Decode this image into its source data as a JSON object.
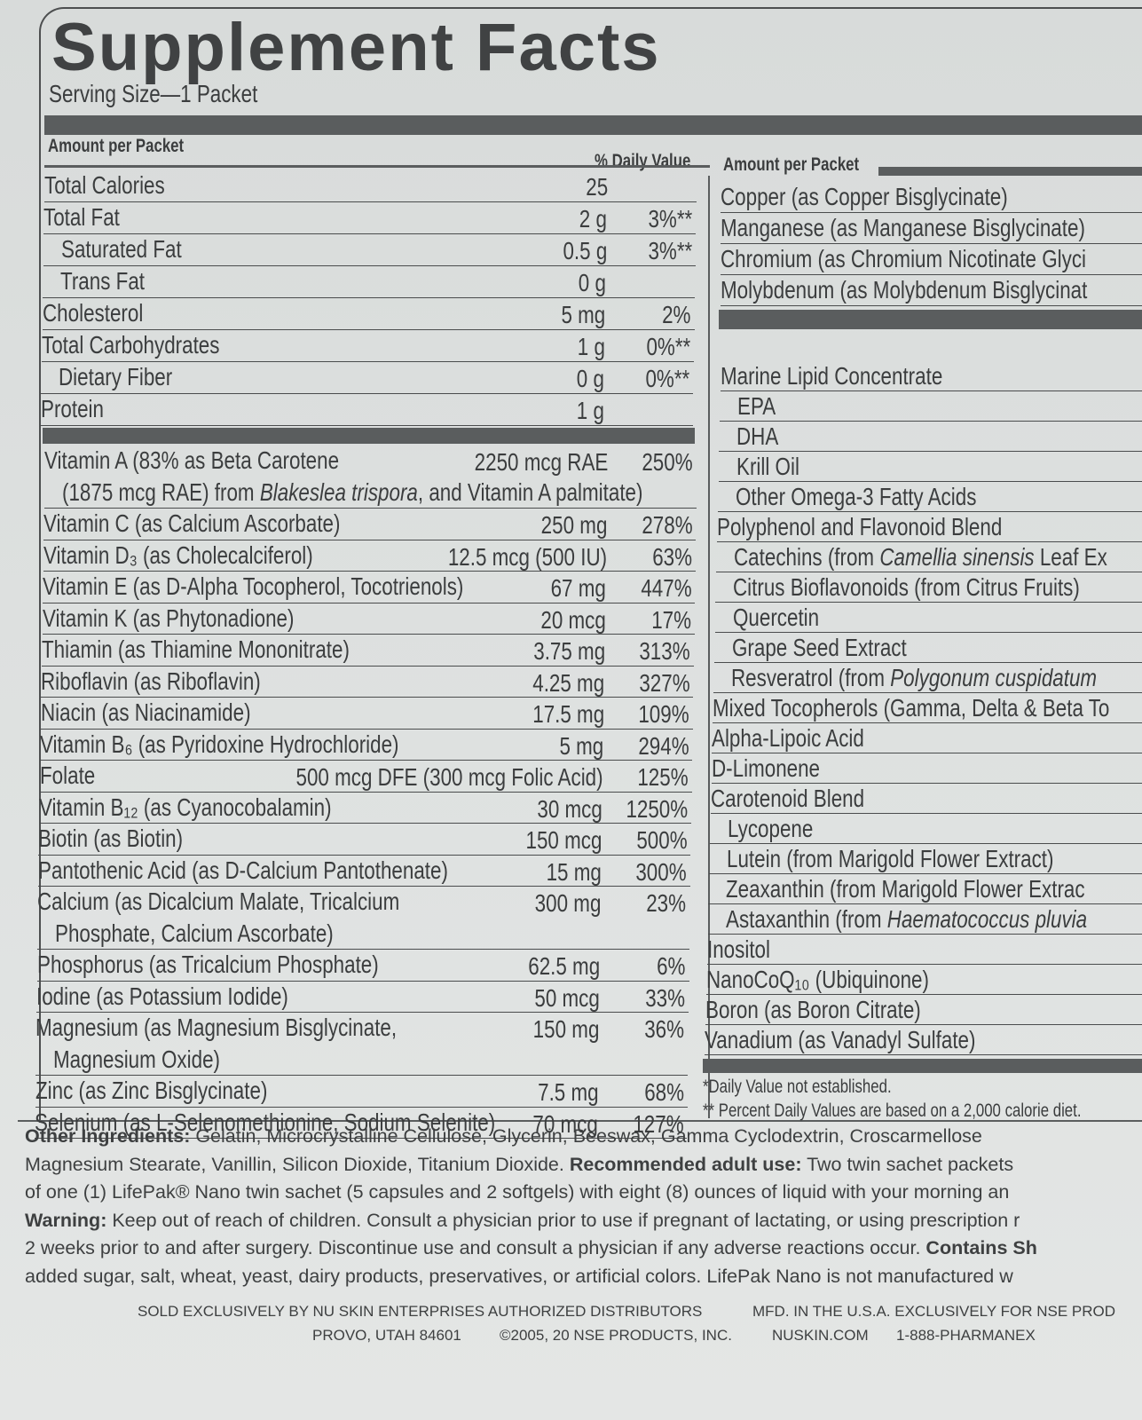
{
  "title": "Supplement Facts",
  "serving_size": "Serving Size—1 Packet",
  "left": {
    "header_amount": "Amount per Packet",
    "header_dv": "% Daily Value",
    "sections": [
      {
        "rows": [
          {
            "name": [
              [
                "Total Calories"
              ]
            ],
            "amount": "25",
            "dv": null,
            "indent": 0
          },
          {
            "name": [
              [
                "Total Fat"
              ]
            ],
            "amount": "2 g",
            "dv": "3%**",
            "indent": 0
          },
          {
            "name": [
              [
                "Saturated Fat"
              ]
            ],
            "amount": "0.5 g",
            "dv": "3%**",
            "indent": 1
          },
          {
            "name": [
              [
                "Trans Fat"
              ]
            ],
            "amount": "0 g",
            "dv": null,
            "indent": 1
          },
          {
            "name": [
              [
                "Cholesterol"
              ]
            ],
            "amount": "5 mg",
            "dv": "2%",
            "indent": 0
          },
          {
            "name": [
              [
                "Total Carbohydrates"
              ]
            ],
            "amount": "1 g",
            "dv": "0%**",
            "indent": 0
          },
          {
            "name": [
              [
                "Dietary Fiber"
              ]
            ],
            "amount": "0 g",
            "dv": "0%**",
            "indent": 1
          },
          {
            "name": [
              [
                "Protein"
              ]
            ],
            "amount": "1 g",
            "dv": null,
            "indent": 0
          }
        ]
      },
      {
        "rows": [
          {
            "name": [
              [
                "Vitamin A (83% as Beta Carotene"
              ],
              [
                "(1875 mcg RAE) from ",
                "Blakeslea trispora",
                ", and Vitamin A palmitate)"
              ]
            ],
            "amount": "2250 mcg RAE",
            "dv": "250%",
            "indent": 0
          },
          {
            "name": [
              [
                "Vitamin C (as Calcium Ascorbate)"
              ]
            ],
            "amount": "250 mg",
            "dv": "278%",
            "indent": 0
          },
          {
            "name": [
              [
                "Vitamin D₃ (as Cholecalciferol)"
              ]
            ],
            "amount": "12.5 mcg (500 IU)",
            "dv": "63%",
            "indent": 0
          },
          {
            "name": [
              [
                "Vitamin E (as D-Alpha Tocopherol, Tocotrienols)"
              ]
            ],
            "amount": "67 mg",
            "dv": "447%",
            "indent": 0
          },
          {
            "name": [
              [
                "Vitamin K (as Phytonadione)"
              ]
            ],
            "amount": "20 mcg",
            "dv": "17%",
            "indent": 0
          },
          {
            "name": [
              [
                "Thiamin (as Thiamine Mononitrate)"
              ]
            ],
            "amount": "3.75 mg",
            "dv": "313%",
            "indent": 0
          },
          {
            "name": [
              [
                "Riboflavin (as Riboflavin)"
              ]
            ],
            "amount": "4.25 mg",
            "dv": "327%",
            "indent": 0
          },
          {
            "name": [
              [
                "Niacin (as Niacinamide)"
              ]
            ],
            "amount": "17.5 mg",
            "dv": "109%",
            "indent": 0
          },
          {
            "name": [
              [
                "Vitamin B₆ (as Pyridoxine Hydrochloride)"
              ]
            ],
            "amount": "5 mg",
            "dv": "294%",
            "indent": 0
          },
          {
            "name": [
              [
                "Folate"
              ]
            ],
            "amount": "500 mcg DFE (300 mcg Folic Acid)",
            "dv": "125%",
            "indent": 0
          },
          {
            "name": [
              [
                "Vitamin B₁₂ (as Cyanocobalamin)"
              ]
            ],
            "amount": "30 mcg",
            "dv": "1250%",
            "indent": 0
          },
          {
            "name": [
              [
                "Biotin (as Biotin)"
              ]
            ],
            "amount": "150 mcg",
            "dv": "500%",
            "indent": 0
          },
          {
            "name": [
              [
                "Pantothenic Acid (as D-Calcium Pantothenate)"
              ]
            ],
            "amount": "15 mg",
            "dv": "300%",
            "indent": 0
          },
          {
            "name": [
              [
                "Calcium (as Dicalcium Malate, Tricalcium"
              ],
              [
                "Phosphate, Calcium Ascorbate)"
              ]
            ],
            "amount": "300 mg",
            "dv": "23%",
            "indent": 0
          },
          {
            "name": [
              [
                "Phosphorus (as Tricalcium Phosphate)"
              ]
            ],
            "amount": "62.5 mg",
            "dv": "6%",
            "indent": 0
          },
          {
            "name": [
              [
                "Iodine (as Potassium Iodide)"
              ]
            ],
            "amount": "50 mcg",
            "dv": "33%",
            "indent": 0
          },
          {
            "name": [
              [
                "Magnesium (as Magnesium Bisglycinate,"
              ],
              [
                "Magnesium Oxide)"
              ]
            ],
            "amount": "150 mg",
            "dv": "36%",
            "indent": 0
          },
          {
            "name": [
              [
                "Zinc (as Zinc Bisglycinate)"
              ]
            ],
            "amount": "7.5 mg",
            "dv": "68%",
            "indent": 0
          },
          {
            "name": [
              [
                "Selenium (as L-Selenomethionine, Sodium Selenite)"
              ]
            ],
            "amount": "70 mcg",
            "dv": "127%",
            "indent": 0
          }
        ]
      }
    ]
  },
  "right": {
    "header_amount": "Amount per Packet",
    "sections": [
      {
        "rows": [
          {
            "name": [
              "Copper (as Copper Bisglycinate)"
            ],
            "indent": 0
          },
          {
            "name": [
              "Manganese (as Manganese Bisglycinate)"
            ],
            "indent": 0
          },
          {
            "name": [
              "Chromium (as Chromium Nicotinate Glyci"
            ],
            "indent": 0
          },
          {
            "name": [
              "Molybdenum (as Molybdenum Bisglycinat"
            ],
            "indent": 0
          }
        ]
      },
      {
        "rows": [
          {
            "name": [
              "Marine Lipid Concentrate"
            ],
            "indent": 0
          },
          {
            "name": [
              "EPA"
            ],
            "indent": 1
          },
          {
            "name": [
              "DHA"
            ],
            "indent": 1
          },
          {
            "name": [
              "Krill Oil"
            ],
            "indent": 1
          },
          {
            "name": [
              "Other Omega-3 Fatty Acids"
            ],
            "indent": 1
          },
          {
            "name": [
              "Polyphenol and Flavonoid Blend"
            ],
            "indent": 0
          },
          {
            "name": [
              "Catechins (from ",
              "Camellia sinensis",
              " Leaf Ex"
            ],
            "indent": 1
          },
          {
            "name": [
              "Citrus Bioflavonoids (from Citrus Fruits)"
            ],
            "indent": 1
          },
          {
            "name": [
              "Quercetin"
            ],
            "indent": 1
          },
          {
            "name": [
              "Grape Seed Extract"
            ],
            "indent": 1
          },
          {
            "name": [
              "Resveratrol (from ",
              "Polygonum cuspidatum"
            ],
            "indent": 1
          },
          {
            "name": [
              "Mixed Tocopherols (Gamma, Delta & Beta To"
            ],
            "indent": 0
          },
          {
            "name": [
              "Alpha-Lipoic Acid"
            ],
            "indent": 0
          },
          {
            "name": [
              "D-Limonene"
            ],
            "indent": 0
          },
          {
            "name": [
              "Carotenoid Blend"
            ],
            "indent": 0
          },
          {
            "name": [
              "Lycopene"
            ],
            "indent": 1
          },
          {
            "name": [
              "Lutein (from Marigold Flower Extract)"
            ],
            "indent": 1
          },
          {
            "name": [
              "Zeaxanthin (from Marigold Flower Extrac"
            ],
            "indent": 1
          },
          {
            "name": [
              "Astaxanthin (from ",
              "Haematococcus pluvia"
            ],
            "indent": 1
          },
          {
            "name": [
              "Inositol"
            ],
            "indent": 0
          },
          {
            "name": [
              "NanoCoQ₁₀ (Ubiquinone)"
            ],
            "indent": 0
          },
          {
            "name": [
              "Boron (as Boron Citrate)"
            ],
            "indent": 0
          },
          {
            "name": [
              "Vanadium (as Vanadyl Sulfate)"
            ],
            "indent": 0
          }
        ]
      }
    ],
    "footnotes": [
      "*Daily Value not established.",
      "** Percent Daily Values are based on a 2,000 calorie diet."
    ]
  },
  "paragraph": [
    [
      {
        "text": "Other Ingredients:",
        "bold": true
      },
      {
        "text": " Gelatin, Microcrystalline Cellulose, Glycerin, Beeswax, Gamma Cyclodextrin, Croscarmellose",
        "bold": false
      }
    ],
    [
      {
        "text": "Magnesium Stearate, Vanillin, Silicon Dioxide, Titanium Dioxide. ",
        "bold": false
      },
      {
        "text": "Recommended adult use:",
        "bold": true
      },
      {
        "text": " Two twin sachet packets",
        "bold": false
      }
    ],
    [
      {
        "text": "of one (1) LifePak® Nano twin sachet (5 capsules and 2 softgels) with eight (8) ounces of liquid with your morning an",
        "bold": false
      }
    ],
    [
      {
        "text": "Warning:",
        "bold": true
      },
      {
        "text": " Keep out of reach of children. Consult a physician prior to use if pregnant of lactating, or using prescription r",
        "bold": false
      }
    ],
    [
      {
        "text": "2 weeks prior to and after surgery. Discontinue use and consult a physician if any adverse reactions occur. ",
        "bold": false
      },
      {
        "text": "Contains Sh",
        "bold": true
      }
    ],
    [
      {
        "text": "added sugar, salt, wheat, yeast, dairy products, preservatives, or artificial colors. LifePak Nano is not manufactured w",
        "bold": false
      }
    ]
  ],
  "footer": [
    [
      "SOLD EXCLUSIVELY BY NU SKIN ENTERPRISES AUTHORIZED DISTRIBUTORS",
      "MFD. IN THE U.S.A. EXCLUSIVELY FOR NSE PROD"
    ],
    [
      "PROVO, UTAH 84601",
      "©2005, 20 NSE PRODUCTS, INC.",
      "NUSKIN.COM",
      "1-888-PHARMANEX"
    ]
  ]
}
